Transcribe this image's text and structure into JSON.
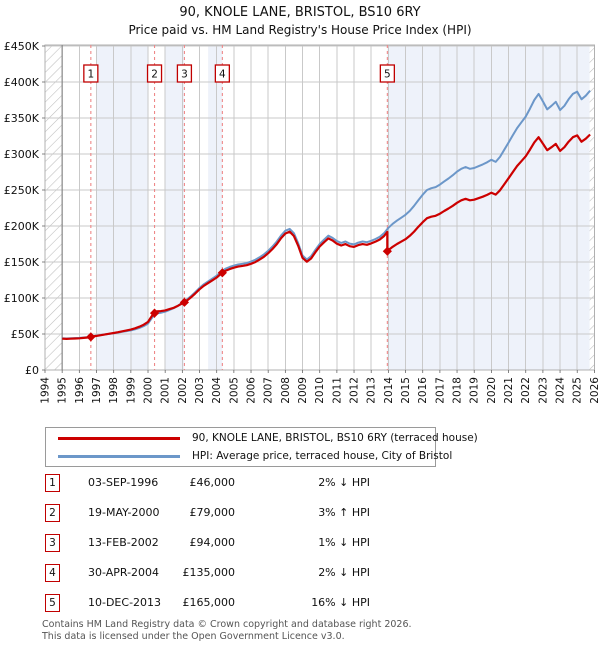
{
  "title": "90, KNOLE LANE, BRISTOL, BS10 6RY",
  "subtitle": "Price paid vs. HM Land Registry's House Price Index (HPI)",
  "legend": {
    "series1": "90, KNOLE LANE, BRISTOL, BS10 6RY (terraced house)",
    "series2": "HPI: Average price, terraced house, City of Bristol"
  },
  "sales": [
    {
      "num": "1",
      "date": "03-SEP-1996",
      "price": "£46,000",
      "pct": "2% ↓ HPI",
      "year": 1996.67,
      "value": 46000
    },
    {
      "num": "2",
      "date": "19-MAY-2000",
      "price": "£79,000",
      "pct": "3% ↑ HPI",
      "year": 2000.38,
      "value": 79000
    },
    {
      "num": "3",
      "date": "13-FEB-2002",
      "price": "£94,000",
      "pct": "1% ↓ HPI",
      "year": 2002.12,
      "value": 94000
    },
    {
      "num": "4",
      "date": "30-APR-2004",
      "price": "£135,000",
      "pct": "2% ↓ HPI",
      "year": 2004.33,
      "value": 135000
    },
    {
      "num": "5",
      "date": "10-DEC-2013",
      "price": "£165,000",
      "pct": "16% ↓ HPI",
      "year": 2013.94,
      "value": 165000
    }
  ],
  "footer": {
    "line1": "Contains HM Land Registry data © Crown copyright and database right 2026.",
    "line2": "This data is licensed under the Open Government Licence v3.0."
  },
  "chart_data": {
    "type": "line",
    "title": "Price paid vs. HM Land Registry's House Price Index (HPI)",
    "xlim": [
      1994,
      2026
    ],
    "ylim": [
      0,
      450000
    ],
    "grid": true,
    "legend_position": "below",
    "x_ticks": [
      1994,
      1995,
      1996,
      1997,
      1998,
      1999,
      2000,
      2001,
      2002,
      2003,
      2004,
      2005,
      2006,
      2007,
      2008,
      2009,
      2010,
      2011,
      2012,
      2013,
      2014,
      2015,
      2016,
      2017,
      2018,
      2019,
      2020,
      2021,
      2022,
      2023,
      2024,
      2025,
      2026
    ],
    "y_ticks": [
      {
        "v": 0,
        "label": "£0"
      },
      {
        "v": 50000,
        "label": "£50K"
      },
      {
        "v": 100000,
        "label": "£100K"
      },
      {
        "v": 150000,
        "label": "£150K"
      },
      {
        "v": 200000,
        "label": "£200K"
      },
      {
        "v": 250000,
        "label": "£250K"
      },
      {
        "v": 300000,
        "label": "£300K"
      },
      {
        "v": 350000,
        "label": "£350K"
      },
      {
        "v": 400000,
        "label": "£400K"
      }
    ],
    "hpi_series": {
      "name": "HPI: Average price, terraced house, City of Bristol",
      "x_start": 1995.0,
      "x_step": 0.25,
      "values": [
        44000,
        43800,
        44000,
        44300,
        44600,
        45100,
        45700,
        47000,
        47800,
        48600,
        49400,
        50200,
        51000,
        52000,
        53000,
        54000,
        55000,
        56500,
        58500,
        61000,
        64500,
        73000,
        78500,
        79500,
        81000,
        83500,
        86000,
        89500,
        93500,
        97500,
        102500,
        108000,
        114000,
        119000,
        123000,
        127000,
        131000,
        136500,
        140500,
        143000,
        145000,
        146500,
        147500,
        148500,
        150500,
        153000,
        156500,
        160500,
        165500,
        171500,
        178500,
        187000,
        193500,
        196000,
        190000,
        176000,
        159000,
        153500,
        158000,
        167000,
        175000,
        181000,
        186500,
        183500,
        179000,
        176500,
        178500,
        175500,
        174500,
        177000,
        178500,
        177500,
        179500,
        182000,
        185000,
        190000,
        197500,
        203000,
        207500,
        211500,
        215500,
        221000,
        228000,
        236000,
        243500,
        250000,
        252500,
        254000,
        257500,
        262000,
        266000,
        270500,
        275500,
        279500,
        282000,
        279500,
        280500,
        283000,
        285500,
        288500,
        292000,
        289000,
        296000,
        306000,
        316000,
        326000,
        336000,
        344000,
        352000,
        363000,
        375000,
        383500,
        373000,
        362000,
        367000,
        372500,
        361000,
        367000,
        376000,
        383500,
        386500,
        376000,
        381000,
        388000
      ]
    },
    "property_series": {
      "name": "90, KNOLE LANE, BRISTOL, BS10 6RY (terraced house)",
      "derivation": "HPI series scaled through the five price-paid points; drops vertically to £165,000 at Dec-2013 (16% below HPI), tracks 84% of HPI afterwards"
    },
    "shaded_bands": [
      [
        1997.0,
        2000.0
      ],
      [
        2001.0,
        2002.12
      ],
      [
        2003.5,
        2004.33
      ],
      [
        2013.94,
        2025.72
      ]
    ],
    "hatched_bands": [
      [
        1994.0,
        1995.0
      ],
      [
        2025.72,
        2026.0
      ]
    ],
    "colors": {
      "property_line": "#cc0000",
      "hpi_line": "#6c97c9",
      "sale_dash": "#ee8888",
      "band": "#eef2fa",
      "grid": "#c9c9c9",
      "frame": "#b0b0b0",
      "hatch": "#bdbdbd",
      "data_start_line": "#888888",
      "marker_box_border": "#c00000",
      "text": "#111111"
    }
  }
}
